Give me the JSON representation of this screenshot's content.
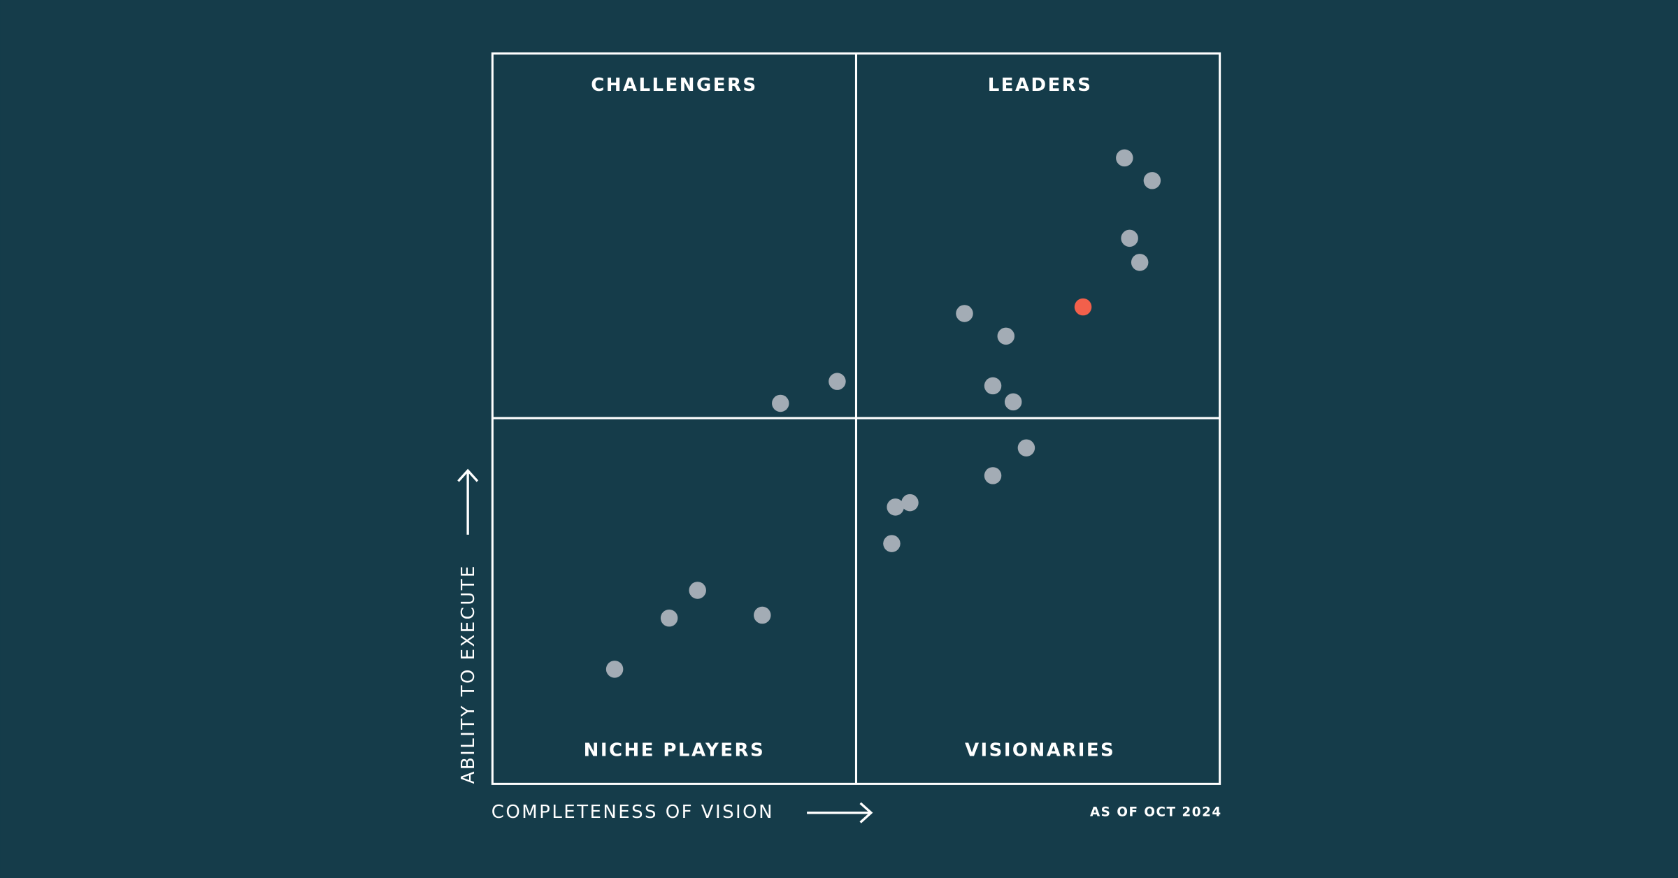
{
  "chart_data": {
    "type": "scatter",
    "quadrants": [
      "CHALLENGERS",
      "LEADERS",
      "NICHE PLAYERS",
      "VISIONARIES"
    ],
    "x_label": "COMPLETENESS OF VISION",
    "y_label": "ABILITY TO EXECUTE",
    "note": "AS OF OCT 2024",
    "x": [
      86.9,
      90.7,
      87.6,
      89.0,
      81.2,
      64.9,
      70.6,
      68.8,
      71.6,
      47.4,
      39.6,
      73.4,
      68.8,
      57.4,
      55.4,
      54.9,
      28.2,
      24.3,
      37.1,
      16.8
    ],
    "values": [
      85.7,
      82.6,
      74.7,
      71.4,
      65.3,
      64.4,
      61.3,
      54.5,
      52.3,
      55.1,
      52.1,
      46.0,
      42.2,
      38.5,
      37.9,
      32.9,
      26.5,
      22.7,
      23.1,
      15.7
    ],
    "colors": [
      "#a3acb5",
      "#a3acb5",
      "#a3acb5",
      "#a3acb5",
      "#f2604b",
      "#a3acb5",
      "#a3acb5",
      "#a3acb5",
      "#a3acb5",
      "#a3acb5",
      "#a3acb5",
      "#a3acb5",
      "#a3acb5",
      "#a3acb5",
      "#a3acb5",
      "#a3acb5",
      "#a3acb5",
      "#a3acb5",
      "#a3acb5",
      "#a3acb5"
    ],
    "xlim": [
      0,
      100
    ],
    "ylim": [
      0,
      100
    ]
  }
}
